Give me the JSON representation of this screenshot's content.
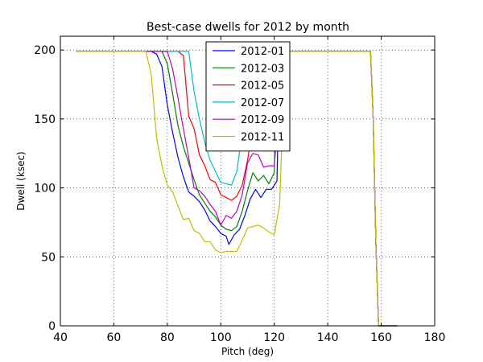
{
  "chart_data": {
    "type": "line",
    "title": "Best-case dwells for 2012 by month",
    "xlabel": "Pitch (deg)",
    "ylabel": "Dwell (ksec)",
    "xlim": [
      40,
      180
    ],
    "ylim": [
      0,
      210
    ],
    "xticks": [
      40,
      60,
      80,
      100,
      120,
      140,
      160,
      180
    ],
    "yticks": [
      0,
      50,
      100,
      150,
      200
    ],
    "grid": true,
    "legend_position": "top-center",
    "series": [
      {
        "name": "2012-01",
        "color": "#0000ff",
        "points": [
          [
            46,
            199
          ],
          [
            74,
            199
          ],
          [
            76,
            197
          ],
          [
            78,
            188
          ],
          [
            80,
            160
          ],
          [
            82,
            140
          ],
          [
            84,
            122
          ],
          [
            86,
            108
          ],
          [
            88,
            97
          ],
          [
            90,
            94
          ],
          [
            92,
            90
          ],
          [
            94,
            84
          ],
          [
            96,
            76
          ],
          [
            98,
            72
          ],
          [
            100,
            67
          ],
          [
            102,
            65
          ],
          [
            103,
            59
          ],
          [
            105,
            66
          ],
          [
            107,
            70
          ],
          [
            109,
            80
          ],
          [
            111,
            92
          ],
          [
            113,
            99
          ],
          [
            115,
            93
          ],
          [
            117,
            99
          ],
          [
            119,
            99
          ],
          [
            121,
            105
          ],
          [
            122,
            199
          ],
          [
            156,
            199
          ],
          [
            157,
            150
          ],
          [
            158,
            60
          ],
          [
            159,
            0
          ],
          [
            166,
            0
          ]
        ]
      },
      {
        "name": "2012-03",
        "color": "#008000",
        "points": [
          [
            46,
            199
          ],
          [
            78,
            199
          ],
          [
            80,
            190
          ],
          [
            82,
            168
          ],
          [
            84,
            145
          ],
          [
            86,
            130
          ],
          [
            88,
            118
          ],
          [
            90,
            106
          ],
          [
            92,
            95
          ],
          [
            94,
            89
          ],
          [
            96,
            83
          ],
          [
            98,
            79
          ],
          [
            100,
            73
          ],
          [
            102,
            70
          ],
          [
            104,
            69
          ],
          [
            106,
            72
          ],
          [
            108,
            83
          ],
          [
            110,
            98
          ],
          [
            112,
            111
          ],
          [
            114,
            105
          ],
          [
            116,
            109
          ],
          [
            118,
            103
          ],
          [
            120,
            111
          ],
          [
            121,
            199
          ],
          [
            156,
            199
          ],
          [
            157,
            150
          ],
          [
            158,
            60
          ],
          [
            159,
            0
          ],
          [
            166,
            0
          ]
        ]
      },
      {
        "name": "2012-05",
        "color": "#ff0000",
        "points": [
          [
            46,
            199
          ],
          [
            84,
            199
          ],
          [
            86,
            196
          ],
          [
            88,
            152
          ],
          [
            90,
            143
          ],
          [
            92,
            124
          ],
          [
            94,
            116
          ],
          [
            96,
            106
          ],
          [
            98,
            104
          ],
          [
            100,
            95
          ],
          [
            102,
            93
          ],
          [
            104,
            91
          ],
          [
            106,
            94
          ],
          [
            108,
            102
          ],
          [
            110,
            120
          ],
          [
            112,
            145
          ],
          [
            114,
            199
          ],
          [
            156,
            199
          ],
          [
            157,
            150
          ],
          [
            158,
            60
          ],
          [
            159,
            0
          ],
          [
            166,
            0
          ]
        ]
      },
      {
        "name": "2012-07",
        "color": "#00bfbf",
        "points": [
          [
            46,
            199
          ],
          [
            88,
            199
          ],
          [
            90,
            170
          ],
          [
            92,
            150
          ],
          [
            94,
            133
          ],
          [
            96,
            120
          ],
          [
            98,
            112
          ],
          [
            100,
            104
          ],
          [
            102,
            103
          ],
          [
            104,
            102
          ],
          [
            106,
            112
          ],
          [
            108,
            140
          ],
          [
            109,
            199
          ],
          [
            156,
            199
          ],
          [
            157,
            150
          ],
          [
            158,
            60
          ],
          [
            159,
            0
          ],
          [
            166,
            0
          ]
        ]
      },
      {
        "name": "2012-09",
        "color": "#bf00bf",
        "points": [
          [
            46,
            199
          ],
          [
            80,
            199
          ],
          [
            82,
            186
          ],
          [
            84,
            165
          ],
          [
            86,
            143
          ],
          [
            88,
            122
          ],
          [
            90,
            100
          ],
          [
            92,
            98
          ],
          [
            94,
            94
          ],
          [
            96,
            88
          ],
          [
            98,
            83
          ],
          [
            100,
            73
          ],
          [
            102,
            80
          ],
          [
            104,
            78
          ],
          [
            106,
            83
          ],
          [
            108,
            95
          ],
          [
            110,
            118
          ],
          [
            112,
            125
          ],
          [
            114,
            124
          ],
          [
            116,
            115
          ],
          [
            118,
            116
          ],
          [
            120,
            116
          ],
          [
            121,
            140
          ],
          [
            122,
            199
          ],
          [
            156,
            199
          ],
          [
            157,
            150
          ],
          [
            158,
            60
          ],
          [
            159,
            0
          ],
          [
            166,
            0
          ]
        ]
      },
      {
        "name": "2012-11",
        "color": "#bfbf00",
        "points": [
          [
            46,
            199
          ],
          [
            72,
            199
          ],
          [
            74,
            182
          ],
          [
            76,
            136
          ],
          [
            78,
            116
          ],
          [
            80,
            102
          ],
          [
            82,
            97
          ],
          [
            84,
            87
          ],
          [
            86,
            77
          ],
          [
            88,
            78
          ],
          [
            90,
            69
          ],
          [
            92,
            67
          ],
          [
            94,
            61
          ],
          [
            96,
            61
          ],
          [
            98,
            55
          ],
          [
            100,
            53
          ],
          [
            102,
            54
          ],
          [
            104,
            54
          ],
          [
            106,
            54
          ],
          [
            108,
            62
          ],
          [
            110,
            71
          ],
          [
            112,
            72
          ],
          [
            114,
            73
          ],
          [
            116,
            71
          ],
          [
            118,
            68
          ],
          [
            120,
            66
          ],
          [
            122,
            88
          ],
          [
            124,
            199
          ],
          [
            156,
            199
          ],
          [
            157,
            150
          ],
          [
            158,
            60
          ],
          [
            159,
            0
          ],
          [
            166,
            0
          ]
        ]
      }
    ]
  }
}
